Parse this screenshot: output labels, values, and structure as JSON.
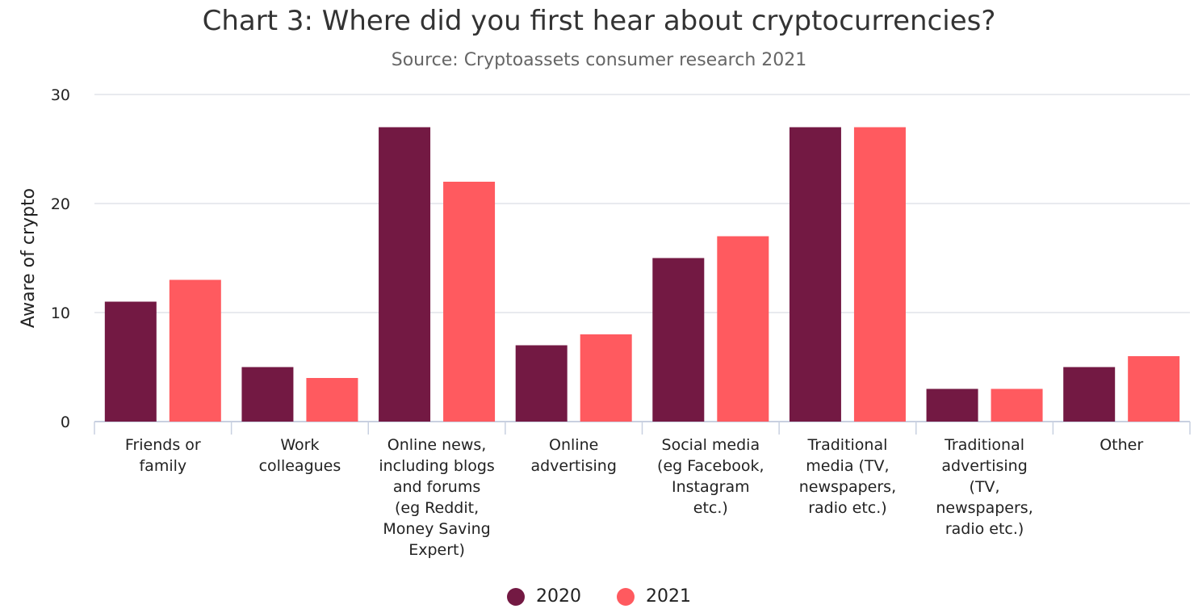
{
  "chart_data": {
    "type": "bar",
    "title": "Chart 3: Where did you first hear about cryptocurrencies?",
    "subtitle": "Source: Cryptoassets consumer research 2021",
    "xlabel": "",
    "ylabel": "Aware of crypto",
    "ylim": [
      0,
      30
    ],
    "yticks": [
      0,
      10,
      20,
      30
    ],
    "grid": true,
    "legend_position": "bottom",
    "categories": [
      [
        "Friends or",
        "family"
      ],
      [
        "Work",
        "colleagues"
      ],
      [
        "Online news,",
        "including blogs",
        "and forums",
        "(eg Reddit,",
        "Money Saving",
        "Expert)"
      ],
      [
        "Online",
        "advertising"
      ],
      [
        "Social media",
        "(eg Facebook,",
        "Instagram",
        "etc.)"
      ],
      [
        "Traditional",
        "media (TV,",
        "newspapers,",
        "radio etc.)"
      ],
      [
        "Traditional",
        "advertising",
        "(TV,",
        "newspapers,",
        "radio etc.)"
      ],
      [
        "Other"
      ]
    ],
    "series": [
      {
        "name": "2020",
        "color": "#731943",
        "values": [
          11,
          5,
          27,
          7,
          15,
          27,
          3,
          5
        ]
      },
      {
        "name": "2021",
        "color": "#ff5a5f",
        "values": [
          13,
          4,
          22,
          8,
          17,
          27,
          3,
          6
        ]
      }
    ]
  }
}
